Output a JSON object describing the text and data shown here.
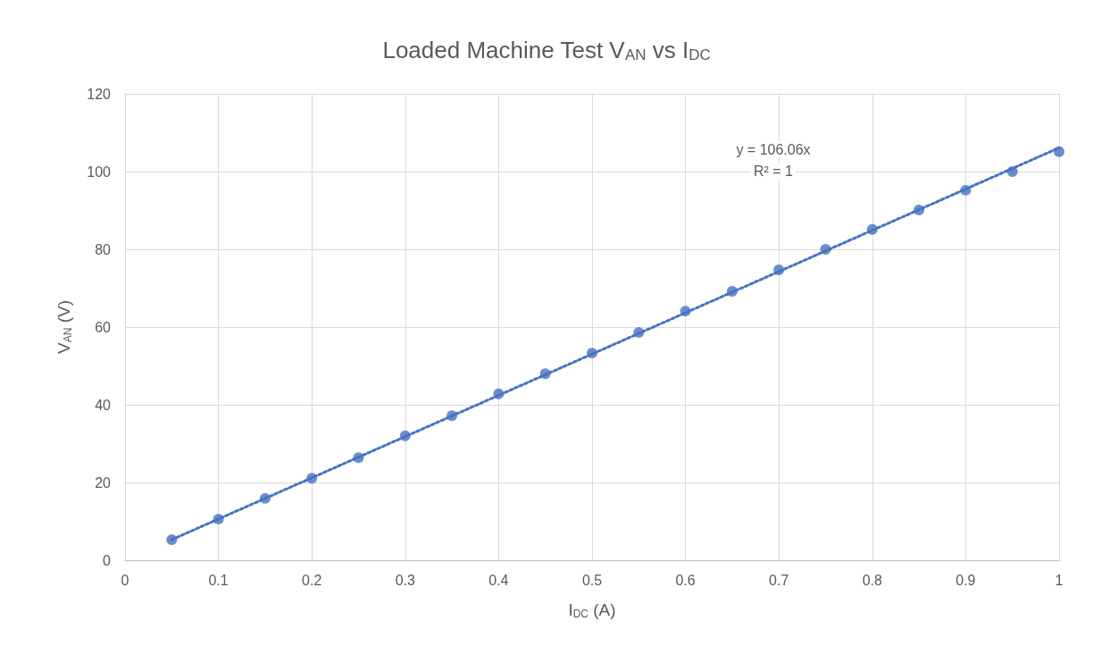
{
  "chart_data": {
    "type": "scatter",
    "title": "Loaded Machine Test V$_{AN}$ vs I$_{DC}$",
    "xlabel": "I$_{DC}$ (A)",
    "ylabel": "V$_{AN}$ (V)",
    "x": [
      0.05,
      0.1,
      0.15,
      0.2,
      0.25,
      0.3,
      0.35,
      0.4,
      0.45,
      0.5,
      0.55,
      0.6,
      0.65,
      0.7,
      0.75,
      0.8,
      0.85,
      0.9,
      0.95,
      1
    ],
    "series": [
      {
        "color": "#4472c4",
        "marker": "circle",
        "values": [
          5.3,
          10.6,
          15.9,
          21.1,
          26.4,
          32,
          37.2,
          42.8,
          48,
          53.3,
          58.6,
          64.1,
          69.2,
          74.7,
          80,
          85.1,
          90.1,
          95.2,
          100,
          105.1
        ]
      },
      {
        "type": "line",
        "color": "#4472c4",
        "marker": "none",
        "line_style": "dotted",
        "x": [
          0.05,
          1
        ],
        "values": [
          5.3,
          106.1
        ]
      }
    ],
    "annotations": [
      "y = 106.06x",
      "R² = 1"
    ],
    "xlim": [
      0,
      1
    ],
    "xticks": [
      0,
      0.1,
      0.2,
      0.3,
      0.4,
      0.5,
      0.6,
      0.7,
      0.8,
      0.9,
      1
    ],
    "ylim": [
      0,
      120
    ],
    "yticks": [
      0,
      20,
      40,
      60,
      80,
      100,
      120
    ],
    "grid": true
  }
}
